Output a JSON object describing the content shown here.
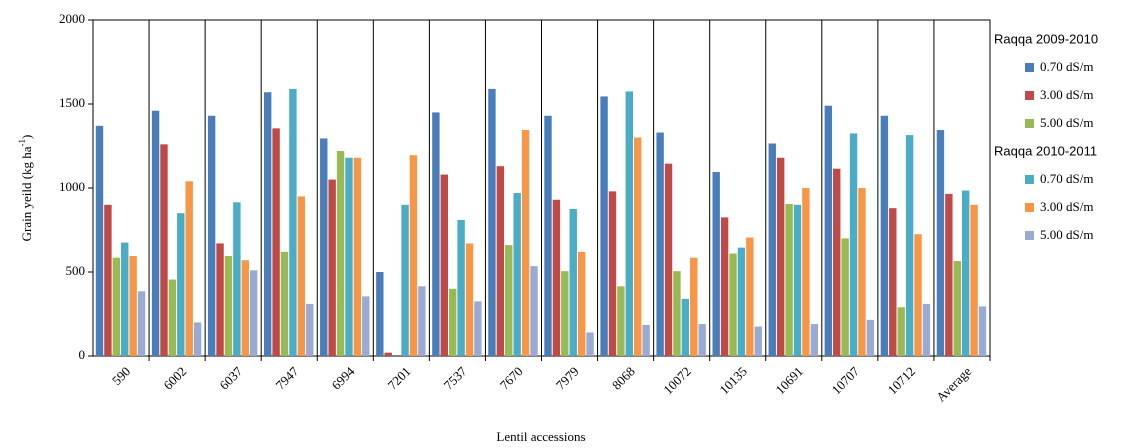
{
  "chart_data": {
    "type": "bar",
    "ylabel": {
      "text": "Grain yeild  (kg ha",
      "superscript": "-1",
      "suffix": ")"
    },
    "xlabel": "Lentil accessions",
    "categories": [
      "590",
      "6002",
      "6037",
      "7947",
      "6994",
      "7201",
      "7537",
      "7670",
      "7979",
      "8068",
      "10072",
      "10135",
      "10691",
      "10707",
      "10712",
      "Average"
    ],
    "series": [
      {
        "group": "Raqqa 2009-2010",
        "name": "0.70 dS/m",
        "color": "#4a7ebb",
        "values": [
          1370,
          1460,
          1430,
          1570,
          1295,
          500,
          1450,
          1590,
          1430,
          1545,
          1330,
          1095,
          1265,
          1490,
          1430,
          1345
        ]
      },
      {
        "group": "Raqqa 2009-2010",
        "name": "3.00 dS/m",
        "color": "#be4b48",
        "values": [
          900,
          1260,
          670,
          1355,
          1050,
          20,
          1080,
          1130,
          930,
          980,
          1145,
          825,
          1180,
          1115,
          880,
          965
        ]
      },
      {
        "group": "Raqqa 2009-2010",
        "name": "5.00 dS/m",
        "color": "#98b954",
        "values": [
          585,
          455,
          595,
          620,
          1220,
          null,
          400,
          660,
          505,
          415,
          505,
          610,
          905,
          700,
          290,
          565
        ]
      },
      {
        "group": "Raqqa 2010-2011",
        "name": "0.70 dS/m",
        "color": "#4bacc6",
        "values": [
          675,
          850,
          915,
          1590,
          1180,
          900,
          810,
          970,
          875,
          1575,
          340,
          645,
          900,
          1325,
          1315,
          985
        ]
      },
      {
        "group": "Raqqa 2010-2011",
        "name": "3.00 dS/m",
        "color": "#f79646",
        "values": [
          595,
          1040,
          570,
          950,
          1180,
          1195,
          670,
          1345,
          620,
          1300,
          585,
          705,
          1000,
          1000,
          725,
          900
        ]
      },
      {
        "group": "Raqqa 2010-2011",
        "name": "5.00 dS/m",
        "color": "#9aabd3",
        "values": [
          385,
          200,
          510,
          310,
          355,
          415,
          325,
          535,
          140,
          185,
          190,
          175,
          190,
          215,
          310,
          295
        ]
      }
    ],
    "ylim": [
      0,
      2000
    ],
    "yticks": [
      0,
      500,
      1000,
      1500,
      2000
    ],
    "category_separators": true
  }
}
